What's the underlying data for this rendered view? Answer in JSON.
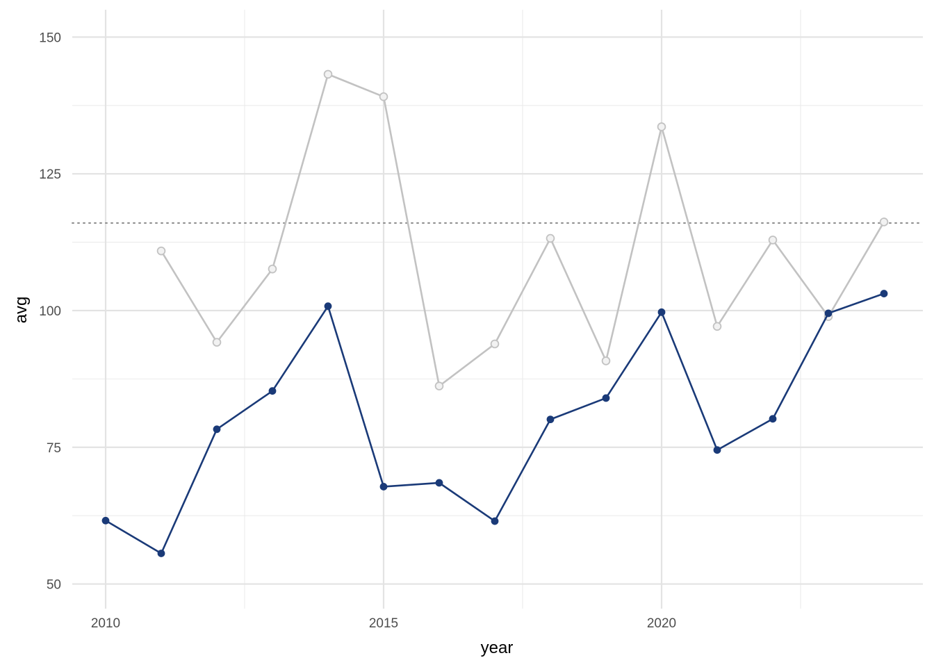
{
  "chart_data": {
    "type": "line",
    "xlabel": "year",
    "ylabel": "avg",
    "xlim": [
      2009.4,
      2024.7
    ],
    "ylim": [
      45.5,
      155.0
    ],
    "x_ticks": [
      2010,
      2015,
      2020
    ],
    "y_ticks": [
      50,
      75,
      100,
      125,
      150
    ],
    "grid": true,
    "reference_line": {
      "y": 116.0,
      "style": "dotted",
      "color": "#8c8c8c"
    },
    "series": [
      {
        "color": "#c2c2c2",
        "marker": "open-circle",
        "x": [
          2011,
          2012,
          2013,
          2014,
          2015,
          2016,
          2017,
          2018,
          2019,
          2020,
          2021,
          2022,
          2023,
          2024
        ],
        "values": [
          110.9,
          94.2,
          107.6,
          143.2,
          139.1,
          86.2,
          93.9,
          113.2,
          90.8,
          133.6,
          97.1,
          112.9,
          98.9,
          116.2
        ]
      },
      {
        "color": "#1a3a78",
        "marker": "filled-circle",
        "x": [
          2010,
          2011,
          2012,
          2013,
          2014,
          2015,
          2016,
          2017,
          2018,
          2019,
          2020,
          2021,
          2022,
          2023,
          2024
        ],
        "values": [
          61.6,
          55.6,
          78.3,
          85.3,
          100.8,
          67.8,
          68.5,
          61.5,
          80.1,
          84.0,
          99.7,
          74.5,
          80.2,
          99.5,
          103.1
        ]
      }
    ]
  }
}
